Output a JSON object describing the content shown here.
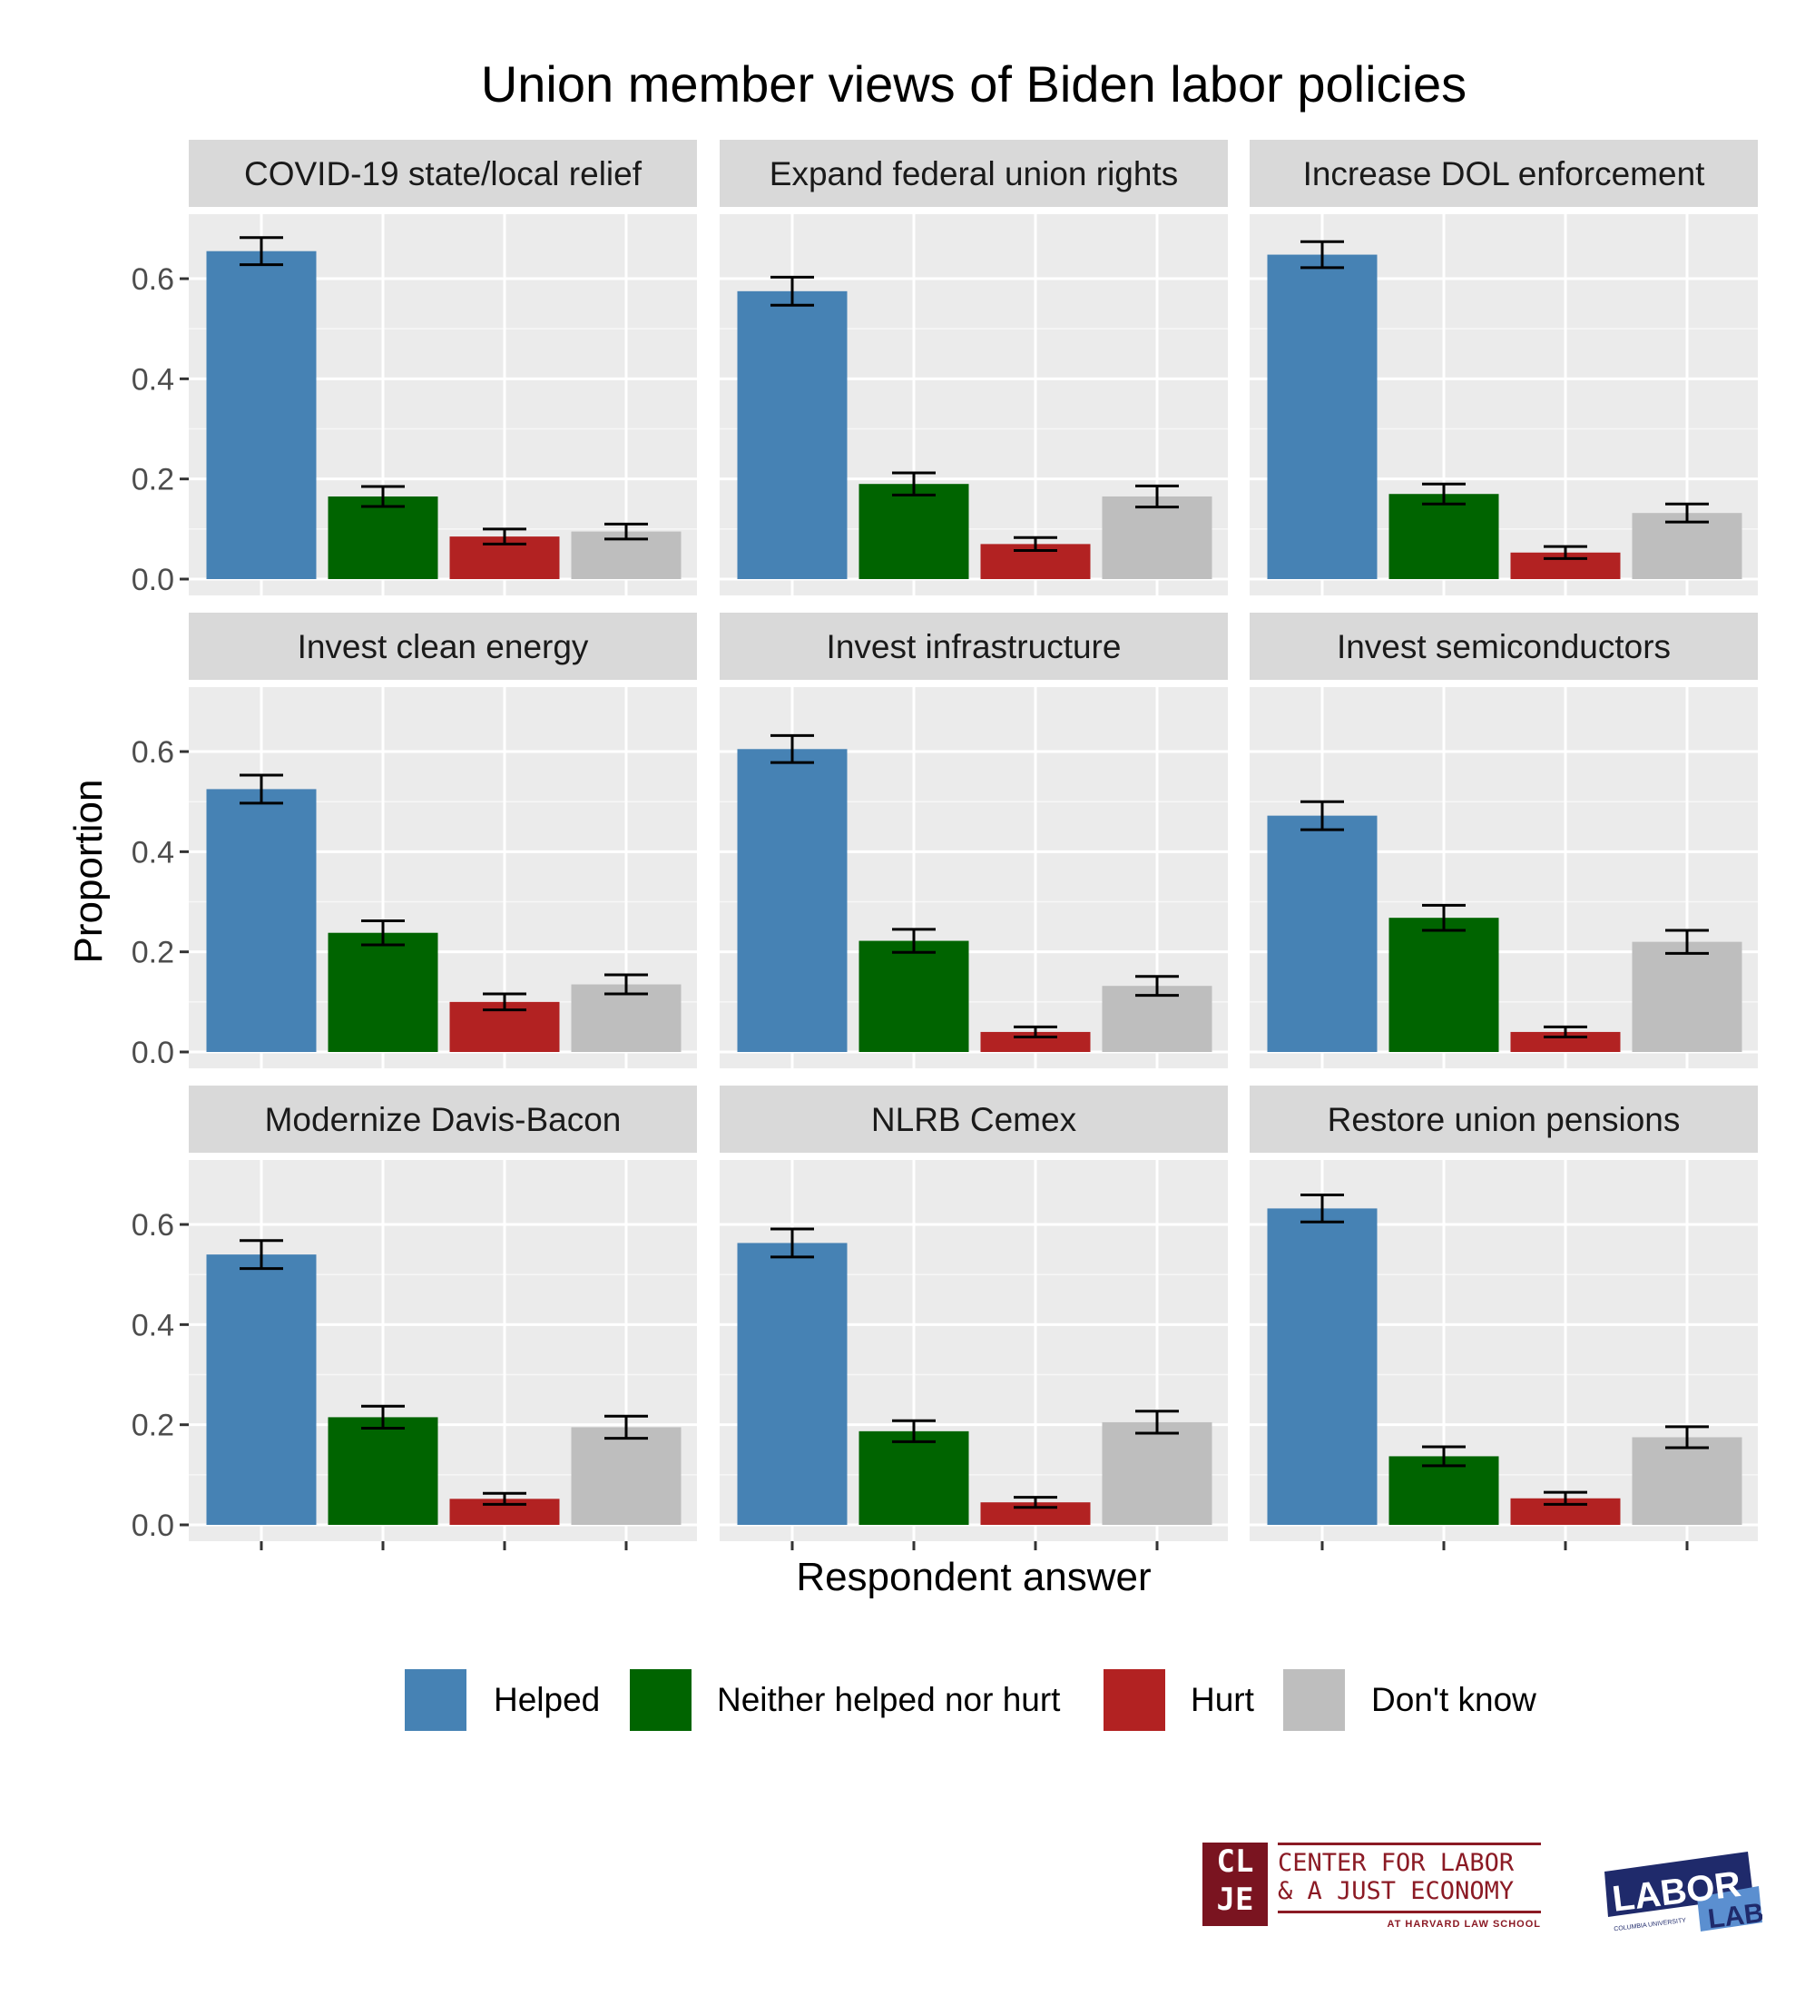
{
  "chart_data": {
    "type": "bar",
    "title": "Union member views of Biden labor policies",
    "xlabel": "Respondent answer",
    "ylabel": "Proportion",
    "ylim": [
      0,
      0.7
    ],
    "yticks": [
      "0.0",
      "0.2",
      "0.4",
      "0.6"
    ],
    "ytick_values": [
      0,
      0.2,
      0.4,
      0.6
    ],
    "grid": true,
    "legend_position": "bottom",
    "categories": [
      "Helped",
      "Neither helped nor hurt",
      "Hurt",
      "Don't know"
    ],
    "colors": [
      "#4682b4",
      "#006400",
      "#b22222",
      "#bebebe"
    ],
    "panels": [
      {
        "name": "COVID-19 state/local relief",
        "values": [
          0.655,
          0.165,
          0.085,
          0.095
        ],
        "err": [
          0.027,
          0.02,
          0.015,
          0.015
        ]
      },
      {
        "name": "Expand federal union rights",
        "values": [
          0.575,
          0.19,
          0.07,
          0.165
        ],
        "err": [
          0.028,
          0.022,
          0.013,
          0.021
        ]
      },
      {
        "name": "Increase DOL enforcement",
        "values": [
          0.648,
          0.17,
          0.053,
          0.132
        ],
        "err": [
          0.026,
          0.02,
          0.012,
          0.018
        ]
      },
      {
        "name": "Invest clean energy",
        "values": [
          0.525,
          0.238,
          0.1,
          0.135
        ],
        "err": [
          0.028,
          0.024,
          0.016,
          0.019
        ]
      },
      {
        "name": "Invest infrastructure",
        "values": [
          0.605,
          0.222,
          0.04,
          0.132
        ],
        "err": [
          0.027,
          0.023,
          0.01,
          0.019
        ]
      },
      {
        "name": "Invest semiconductors",
        "values": [
          0.472,
          0.268,
          0.04,
          0.22
        ],
        "err": [
          0.028,
          0.025,
          0.01,
          0.023
        ]
      },
      {
        "name": "Modernize Davis-Bacon",
        "values": [
          0.54,
          0.215,
          0.052,
          0.195
        ],
        "err": [
          0.028,
          0.022,
          0.011,
          0.022
        ]
      },
      {
        "name": "NLRB Cemex",
        "values": [
          0.563,
          0.187,
          0.045,
          0.205
        ],
        "err": [
          0.028,
          0.021,
          0.01,
          0.022
        ]
      },
      {
        "name": "Restore union pensions",
        "values": [
          0.632,
          0.137,
          0.053,
          0.175
        ],
        "err": [
          0.027,
          0.019,
          0.012,
          0.021
        ]
      }
    ]
  },
  "logos": {
    "clje_mark": [
      "CL",
      "JE"
    ],
    "clje_line1": "CENTER FOR LABOR",
    "clje_line2": "& A JUST ECONOMY",
    "clje_line3": "AT HARVARD LAW SCHOOL",
    "lab_word1": "LABOR",
    "lab_word2": "LAB",
    "lab_sub": "COLUMBIA UNIVERSITY"
  }
}
